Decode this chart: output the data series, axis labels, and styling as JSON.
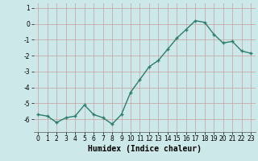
{
  "x": [
    0,
    1,
    2,
    3,
    4,
    5,
    6,
    7,
    8,
    9,
    10,
    11,
    12,
    13,
    14,
    15,
    16,
    17,
    18,
    19,
    20,
    21,
    22,
    23
  ],
  "y": [
    -5.7,
    -5.8,
    -6.2,
    -5.9,
    -5.8,
    -5.1,
    -5.7,
    -5.9,
    -6.3,
    -5.7,
    -4.3,
    -3.5,
    -2.7,
    -2.3,
    -1.6,
    -0.9,
    -0.35,
    0.2,
    0.1,
    -0.65,
    -1.2,
    -1.1,
    -1.7,
    -1.85
  ],
  "line_color": "#2d7d6d",
  "marker": "+",
  "markersize": 3.5,
  "linewidth": 1.0,
  "xlabel": "Humidex (Indice chaleur)",
  "xlabel_fontsize": 7,
  "ylim": [
    -6.8,
    1.3
  ],
  "xlim": [
    -0.5,
    23.5
  ],
  "yticks": [
    1,
    0,
    -1,
    -2,
    -3,
    -4,
    -5,
    -6
  ],
  "xticks": [
    0,
    1,
    2,
    3,
    4,
    5,
    6,
    7,
    8,
    9,
    10,
    11,
    12,
    13,
    14,
    15,
    16,
    17,
    18,
    19,
    20,
    21,
    22,
    23
  ],
  "grid_color": "#c8a0a0",
  "bg_color": "#cce8e8",
  "tick_fontsize": 5.5,
  "marker_color": "#2d7d6d"
}
